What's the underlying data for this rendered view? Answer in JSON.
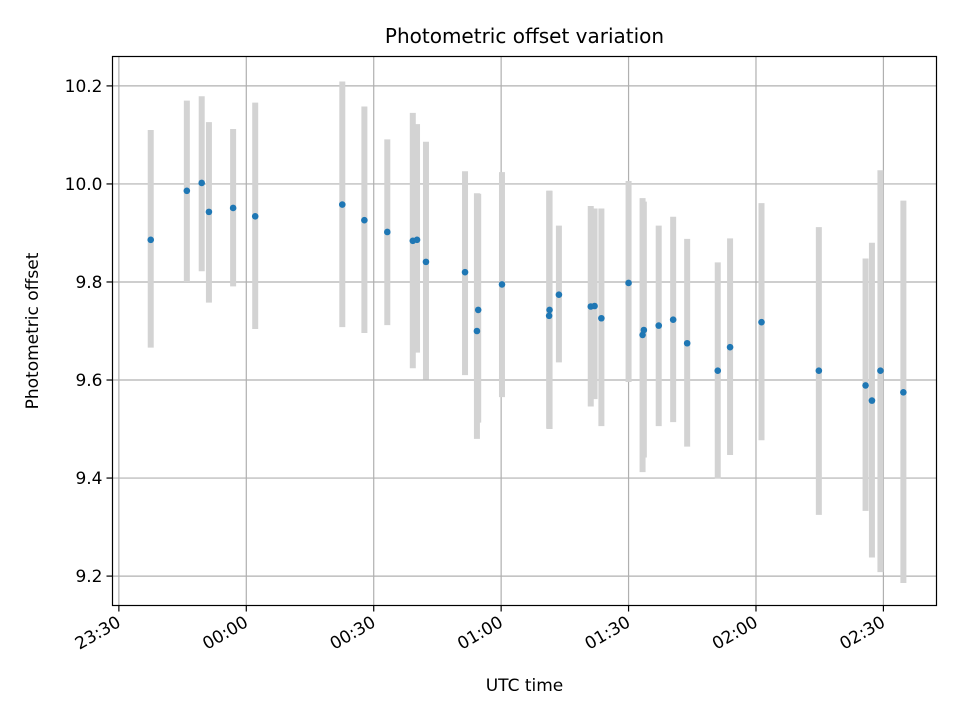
{
  "chart_data": {
    "type": "scatter",
    "title": "Photometric offset variation",
    "xlabel": "UTC time",
    "ylabel": "Photometric offset",
    "x_tick_labels": [
      "23:30",
      "00:00",
      "00:30",
      "01:00",
      "01:30",
      "02:00",
      "02:30"
    ],
    "x_tick_minutes": [
      -30,
      0,
      30,
      60,
      90,
      120,
      150
    ],
    "y_tick_labels": [
      "9.2",
      "9.4",
      "9.6",
      "9.8",
      "10.0",
      "10.2"
    ],
    "y_tick_values": [
      9.2,
      9.4,
      9.6,
      9.8,
      10.0,
      10.2
    ],
    "xlim_minutes": [
      -31.5,
      162.5
    ],
    "ylim": [
      9.14,
      10.26
    ],
    "grid": true,
    "colors": {
      "point": "#1f77b4",
      "errorbar": "#d3d3d3",
      "grid": "#b0b0b0"
    },
    "series": [
      {
        "x_minutes": [
          -22.5,
          -14.0,
          -10.5,
          -8.8,
          -3.1,
          2.1,
          22.6,
          27.8,
          33.2,
          39.2,
          40.2,
          42.3,
          51.5,
          54.3,
          54.6,
          60.2,
          71.3,
          71.4,
          73.6,
          81.1,
          82.0,
          83.6,
          90.0,
          93.3,
          93.6,
          97.1,
          100.5,
          103.8,
          111.0,
          113.9,
          121.3,
          134.8,
          145.8,
          147.3,
          149.3,
          154.7
        ],
        "y": [
          9.886,
          9.986,
          10.002,
          9.943,
          9.951,
          9.934,
          9.958,
          9.926,
          9.902,
          9.884,
          9.886,
          9.841,
          9.82,
          9.7,
          9.743,
          9.795,
          9.731,
          9.743,
          9.774,
          9.75,
          9.751,
          9.726,
          9.798,
          9.692,
          9.702,
          9.711,
          9.723,
          9.675,
          9.619,
          9.667,
          9.718,
          9.619,
          9.589,
          9.558,
          9.619,
          9.575
        ],
        "err_low": [
          9.666,
          9.8,
          9.822,
          9.758,
          9.791,
          9.704,
          9.708,
          9.696,
          9.712,
          9.624,
          9.656,
          9.601,
          9.61,
          9.48,
          9.513,
          9.565,
          9.501,
          9.5,
          9.636,
          9.546,
          9.561,
          9.506,
          9.596,
          9.412,
          9.442,
          9.506,
          9.514,
          9.464,
          9.399,
          9.447,
          9.477,
          9.325,
          9.333,
          9.238,
          9.208,
          9.186
        ],
        "err_high": [
          10.11,
          10.17,
          10.179,
          10.126,
          10.112,
          10.166,
          10.209,
          10.158,
          10.091,
          10.145,
          10.122,
          10.086,
          10.026,
          9.981,
          9.98,
          10.024,
          9.986,
          9.986,
          9.915,
          9.955,
          9.95,
          9.95,
          10.006,
          9.971,
          9.964,
          9.915,
          9.933,
          9.888,
          9.84,
          9.889,
          9.961,
          9.912,
          9.848,
          9.88,
          10.028,
          9.966
        ]
      }
    ]
  }
}
